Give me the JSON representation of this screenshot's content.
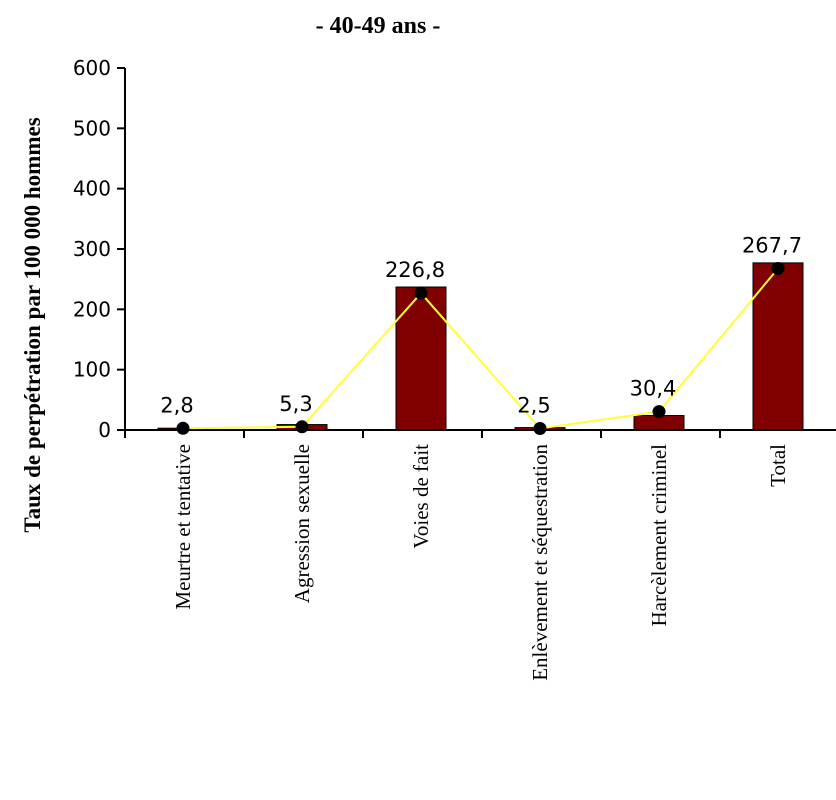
{
  "chart_data": {
    "type": "bar",
    "title": "- 40-49 ans -",
    "ylabel": "Taux de perpétration par 100 000 hommes",
    "xlabel": "",
    "ylim": [
      0,
      600
    ],
    "yticks": [
      "0",
      "100",
      "200",
      "300",
      "400",
      "500",
      "600"
    ],
    "categories": [
      "Meurtre et tentative",
      "Agression sexuelle",
      "Voies de fait",
      "Enlèvement et séquestration",
      "Harcèlement criminel",
      "Total"
    ],
    "bars": [
      3,
      9,
      237,
      4,
      24,
      277
    ],
    "line": [
      2.8,
      5.3,
      226.8,
      2.5,
      30.4,
      267.7
    ],
    "line_labels": [
      "2,8",
      "5,3",
      "226,8",
      "2,5",
      "30,4",
      "267,7"
    ],
    "grid": false,
    "colors": {
      "bar": "#800000",
      "line": "#ffff33",
      "marker": "#000000"
    }
  }
}
